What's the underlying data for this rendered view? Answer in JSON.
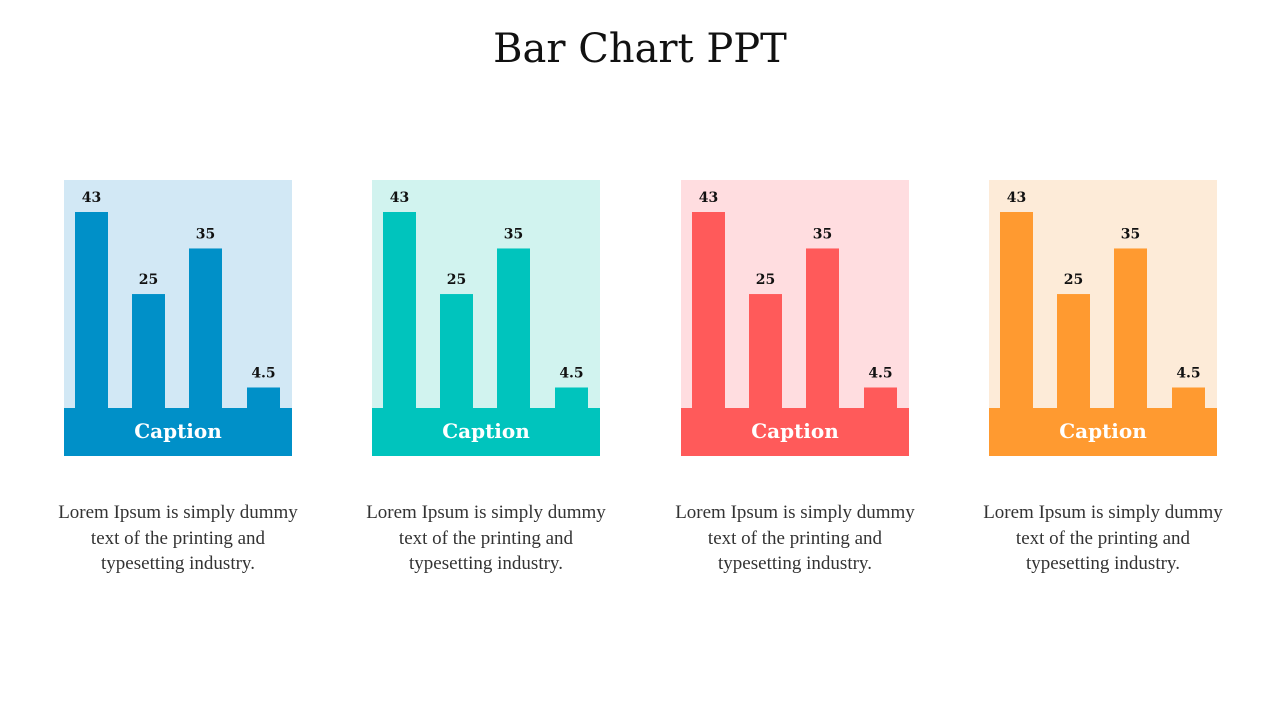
{
  "slide": {
    "title": "Bar Chart PPT"
  },
  "cards": [
    {
      "caption": "Caption",
      "description": "Lorem Ipsum is simply dummy text of the printing and typesetting industry.",
      "colors": {
        "background": "#d2e8f5",
        "bar": "#0090c8"
      }
    },
    {
      "caption": "Caption",
      "description": "Lorem Ipsum is simply dummy text of the printing and typesetting industry.",
      "colors": {
        "background": "#d1f3ef",
        "bar": "#00c4bd"
      }
    },
    {
      "caption": "Caption",
      "description": "Lorem Ipsum is simply dummy text of the printing and typesetting industry.",
      "colors": {
        "background": "#ffdde0",
        "bar": "#ff5a5a"
      }
    },
    {
      "caption": "Caption",
      "description": "Lorem Ipsum is simply dummy text of the printing and typesetting industry.",
      "colors": {
        "background": "#fdebd8",
        "bar": "#ff9a30"
      }
    }
  ],
  "chart_data": [
    {
      "type": "bar",
      "values": [
        43,
        25,
        35,
        4.5
      ],
      "data_labels": [
        "43",
        "25",
        "35",
        "4.5"
      ],
      "ylim": [
        0,
        43
      ]
    },
    {
      "type": "bar",
      "values": [
        43,
        25,
        35,
        4.5
      ],
      "data_labels": [
        "43",
        "25",
        "35",
        "4.5"
      ],
      "ylim": [
        0,
        43
      ]
    },
    {
      "type": "bar",
      "values": [
        43,
        25,
        35,
        4.5
      ],
      "data_labels": [
        "43",
        "25",
        "35",
        "4.5"
      ],
      "ylim": [
        0,
        43
      ]
    },
    {
      "type": "bar",
      "values": [
        43,
        25,
        35,
        4.5
      ],
      "data_labels": [
        "43",
        "25",
        "35",
        "4.5"
      ],
      "ylim": [
        0,
        43
      ]
    }
  ]
}
